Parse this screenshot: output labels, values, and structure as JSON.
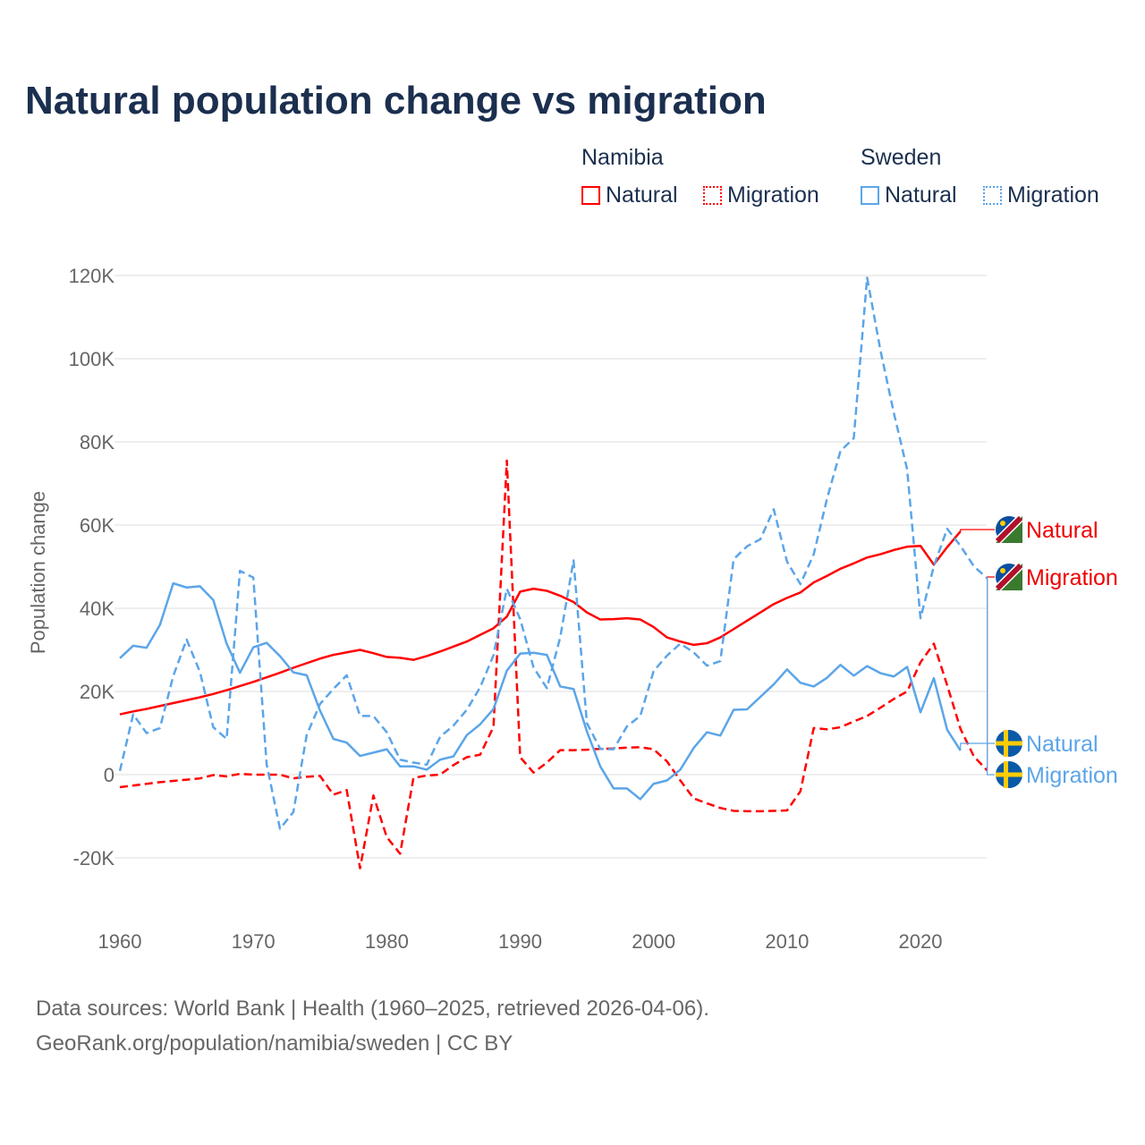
{
  "title": "Natural population change vs migration",
  "legend": {
    "groups": [
      {
        "name": "Namibia",
        "items": [
          {
            "label": "Natural",
            "style": "solid"
          },
          {
            "label": "Migration",
            "style": "dotted"
          }
        ],
        "color": "#ff0000"
      },
      {
        "name": "Sweden",
        "items": [
          {
            "label": "Natural",
            "style": "solid"
          },
          {
            "label": "Migration",
            "style": "dotted"
          }
        ],
        "color": "#5ba5e8"
      }
    ]
  },
  "source": {
    "line1": "Data sources: World Bank | Health (1960–2025, retrieved 2026-04-06).",
    "line2": "GeoRank.org/population/namibia/sweden | CC BY"
  },
  "chart_data": {
    "type": "line",
    "title": "Natural population change vs migration",
    "xlabel": "",
    "ylabel": "Population change",
    "xlim": [
      1960,
      2025
    ],
    "ylim": [
      -20000,
      120000
    ],
    "x_ticks": [
      "1960",
      "1970",
      "1980",
      "1990",
      "2000",
      "2010",
      "2020"
    ],
    "y_ticks": [
      {
        "v": -20000,
        "label": "-20K"
      },
      {
        "v": 0,
        "label": "0"
      },
      {
        "v": 20000,
        "label": "20K"
      },
      {
        "v": 40000,
        "label": "40K"
      },
      {
        "v": 60000,
        "label": "60K"
      },
      {
        "v": 80000,
        "label": "80K"
      },
      {
        "v": 100000,
        "label": "100K"
      },
      {
        "v": 120000,
        "label": "120K"
      }
    ],
    "grid": true,
    "legend_position": "top-right",
    "series": [
      {
        "name": "Namibia Natural",
        "end_label": "Natural",
        "country": "namibia",
        "color": "#ff0000",
        "dash": false,
        "start": 1960,
        "values_k": [
          14.5,
          15.2,
          15.8,
          16.5,
          17.2,
          17.9,
          18.6,
          19.4,
          20.3,
          21.3,
          22.3,
          23.4,
          24.5,
          25.7,
          26.8,
          27.9,
          28.8,
          29.4,
          30.0,
          29.2,
          28.3,
          28.1,
          27.6,
          28.5,
          29.6,
          30.8,
          32.0,
          33.6,
          35.2,
          38.0,
          44.0,
          44.7,
          44.2,
          43.0,
          41.5,
          39.0,
          37.3,
          37.4,
          37.6,
          37.3,
          35.5,
          33.0,
          32.0,
          31.2,
          31.6,
          33.0,
          35.0,
          37.0,
          39.0,
          41.0,
          42.5,
          43.8,
          46.2,
          47.8,
          49.5,
          50.8,
          52.2,
          53.0,
          54.0,
          54.8,
          55.0,
          50.5,
          54.7,
          58.5
        ]
      },
      {
        "name": "Namibia Migration",
        "end_label": "Migration",
        "country": "namibia",
        "color": "#ff0000",
        "dash": true,
        "start": 1960,
        "values_k": [
          -3.0,
          -2.6,
          -2.2,
          -1.8,
          -1.5,
          -1.2,
          -0.9,
          -0.1,
          -0.4,
          0.2,
          0,
          0,
          0,
          -0.9,
          -0.5,
          -0.3,
          -4.8,
          -3.7,
          -22.5,
          -5.0,
          -15.0,
          -19.0,
          -0.8,
          -0.2,
          0,
          2.3,
          4.2,
          4.8,
          11.5,
          75.5,
          4.2,
          0.5,
          2.9,
          5.9,
          5.9,
          6.0,
          6.2,
          6.3,
          6.5,
          6.6,
          6.1,
          3.2,
          -1.4,
          -5.7,
          -6.9,
          -8.0,
          -8.7,
          -8.8,
          -8.8,
          -8.7,
          -8.6,
          -4.0,
          11.2,
          10.9,
          11.4,
          12.8,
          14.1,
          16.1,
          18.2,
          20.0,
          27.0,
          31.5,
          21.5,
          11.0,
          4.4,
          1.0
        ]
      },
      {
        "name": "Sweden Natural",
        "end_label": "Natural",
        "country": "sweden",
        "color": "#5ba5e8",
        "dash": false,
        "start": 1960,
        "values_k": [
          28.0,
          31.0,
          30.5,
          36.0,
          46.0,
          45.0,
          45.3,
          42.0,
          31.5,
          24.5,
          30.6,
          31.7,
          28.5,
          24.6,
          23.9,
          15.4,
          8.6,
          7.7,
          4.5,
          5.3,
          6.1,
          2.0,
          2.0,
          1.2,
          3.6,
          4.4,
          9.5,
          12.1,
          15.8,
          25.0,
          29.1,
          29.3,
          28.8,
          21.2,
          20.6,
          10.4,
          2.0,
          -3.3,
          -3.3,
          -5.9,
          -2.2,
          -1.4,
          1.2,
          6.4,
          10.2,
          9.4,
          15.6,
          15.7,
          18.7,
          21.7,
          25.3,
          22.1,
          21.2,
          23.3,
          26.4,
          23.8,
          26.1,
          24.4,
          23.6,
          25.9,
          15.0,
          23.2,
          10.8,
          5.8
        ]
      },
      {
        "name": "Sweden Migration",
        "end_label": "Migration",
        "country": "sweden",
        "color": "#5ba5e8",
        "dash": true,
        "start": 1960,
        "values_k": [
          0.9,
          14.5,
          10.0,
          11.2,
          23.7,
          32.5,
          24.7,
          11.4,
          8.6,
          49.0,
          47.4,
          2.5,
          -13.0,
          -9.0,
          9.5,
          17.0,
          20.6,
          23.9,
          14.1,
          14.1,
          10.2,
          3.6,
          2.9,
          2.4,
          9.1,
          11.8,
          15.6,
          21.0,
          28.7,
          44.7,
          37.4,
          25.8,
          20.8,
          33.0,
          51.5,
          12.4,
          6.2,
          6.1,
          11.6,
          14.1,
          24.9,
          28.6,
          31.5,
          29.4,
          26.2,
          27.3,
          51.8,
          54.9,
          56.6,
          63.8,
          51.2,
          45.8,
          53.0,
          66.4,
          77.8,
          80.9,
          119.5,
          102.0,
          87.0,
          73.4,
          37.6,
          50.1,
          59.1,
          55.0,
          50.1,
          47.2
        ]
      }
    ]
  }
}
